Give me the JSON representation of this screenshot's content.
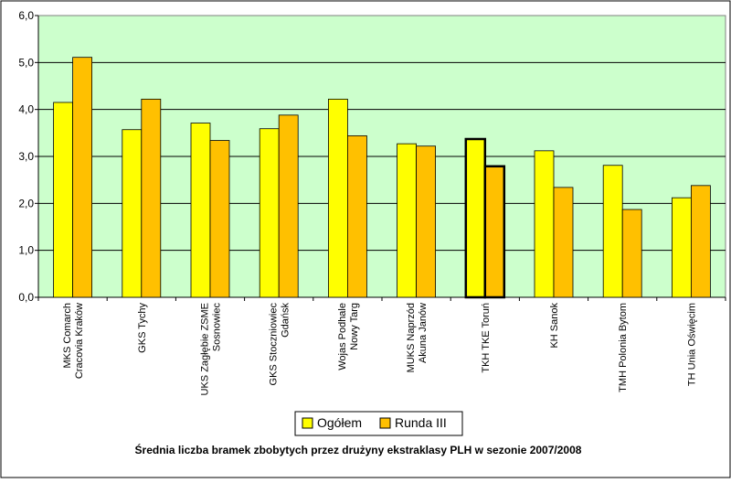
{
  "chart_data": {
    "type": "bar",
    "title": "Średnia liczba bramek zbobytych przez drużyny ekstraklasy PLH w sezonie 2007/2008",
    "categories": [
      [
        "MKS Comarch",
        "Cracovia Kraków"
      ],
      [
        "GKS Tychy"
      ],
      [
        "UKS Zagłębie ZSME",
        "Sosnowiec"
      ],
      [
        "GKS Stoczniowiec",
        "Gdańsk"
      ],
      [
        "Wojas Podhale",
        "Nowy Targ"
      ],
      [
        "MUKS Naprzód",
        "Akuna Janów"
      ],
      [
        "TKH TKE Toruń"
      ],
      [
        "KH Sanok"
      ],
      [
        "TMH Polonia Bytom"
      ],
      [
        "TH Unia Oświęcim"
      ]
    ],
    "series": [
      {
        "name": "Ogółem",
        "color": "#FFFF00",
        "values": [
          4.15,
          3.57,
          3.71,
          3.59,
          4.22,
          3.27,
          3.37,
          3.12,
          2.81,
          2.12
        ]
      },
      {
        "name": "Runda III",
        "color": "#FFC000",
        "values": [
          5.11,
          4.22,
          3.34,
          3.88,
          3.44,
          3.22,
          2.79,
          2.34,
          1.87,
          2.38
        ]
      }
    ],
    "highlighted_category_index": 6,
    "yticks": [
      "0,0",
      "1,0",
      "2,0",
      "3,0",
      "4,0",
      "5,0",
      "6,0"
    ],
    "ylim": [
      0,
      6
    ],
    "grid": true,
    "legend_position": "bottom",
    "plot_background": "#CCFFCC"
  }
}
